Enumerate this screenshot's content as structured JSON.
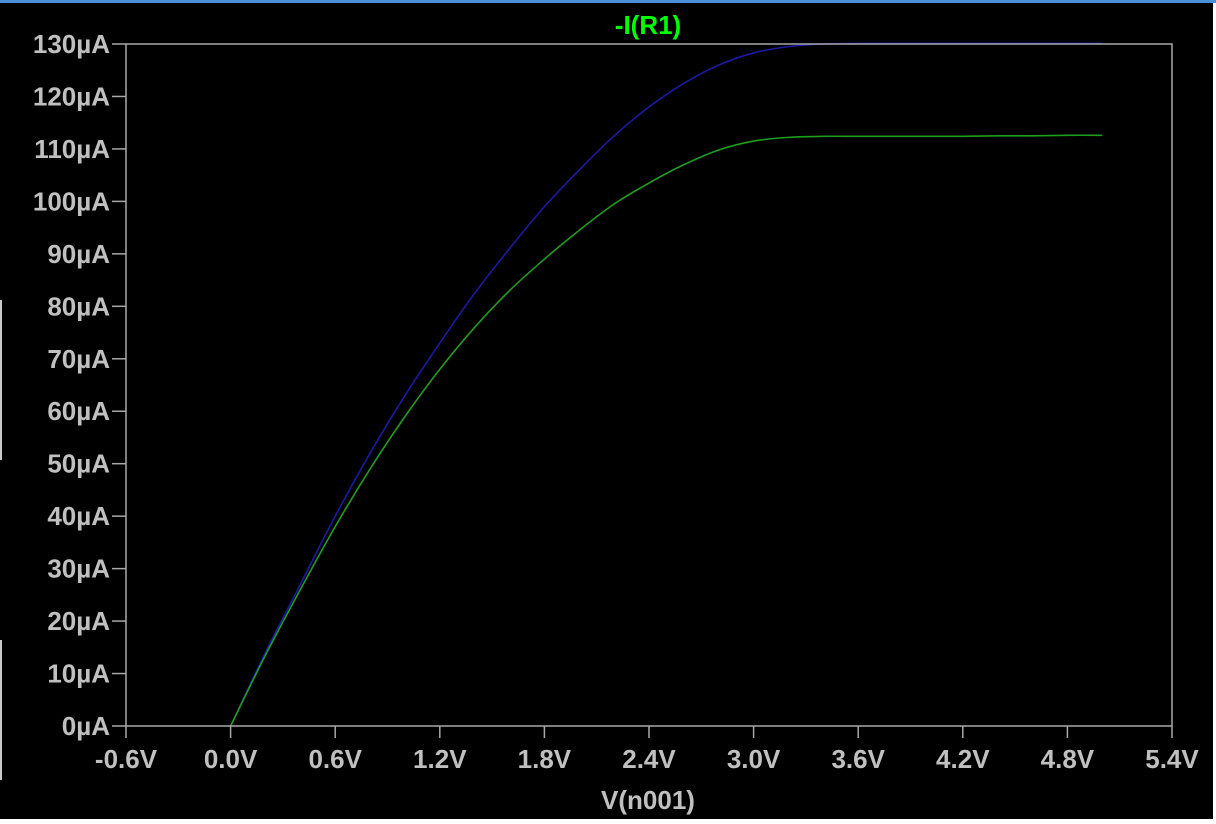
{
  "chart_data": {
    "type": "line",
    "title": "-I(R1)",
    "xlabel": "V(n001)",
    "ylabel": "",
    "xlim": [
      -0.6,
      5.4
    ],
    "ylim": [
      0,
      130
    ],
    "x_ticks": [
      -0.6,
      0.0,
      0.6,
      1.2,
      1.8,
      2.4,
      3.0,
      3.6,
      4.2,
      4.8,
      5.4
    ],
    "x_tick_labels": [
      "-0.6V",
      "0.0V",
      "0.6V",
      "1.2V",
      "1.8V",
      "2.4V",
      "3.0V",
      "3.6V",
      "4.2V",
      "4.8V",
      "5.4V"
    ],
    "y_ticks": [
      0,
      10,
      20,
      30,
      40,
      50,
      60,
      70,
      80,
      90,
      100,
      110,
      120,
      130
    ],
    "y_tick_labels": [
      "0µA",
      "10µA",
      "20µA",
      "30µA",
      "40µA",
      "50µA",
      "60µA",
      "70µA",
      "80µA",
      "90µA",
      "100µA",
      "110µA",
      "120µA",
      "130µA"
    ],
    "grid": false,
    "series": [
      {
        "color": "#1a1aa6",
        "x": [
          0.0,
          0.2,
          0.4,
          0.6,
          0.8,
          1.0,
          1.2,
          1.4,
          1.6,
          1.8,
          2.0,
          2.2,
          2.4,
          2.6,
          2.8,
          3.0,
          3.2,
          3.4,
          3.6,
          3.8,
          4.0,
          4.2,
          4.4,
          4.6,
          4.8,
          5.0
        ],
        "y": [
          0.0,
          14.0,
          27.0,
          40.0,
          52.0,
          63.0,
          73.0,
          82.5,
          91.0,
          99.0,
          106.0,
          112.5,
          118.0,
          122.5,
          126.0,
          128.3,
          129.5,
          130.0,
          130.1,
          130.1,
          130.1,
          130.1,
          130.1,
          130.1,
          130.1,
          130.1
        ]
      },
      {
        "color": "#1e9e1e",
        "x": [
          0.0,
          0.2,
          0.4,
          0.6,
          0.8,
          1.0,
          1.2,
          1.4,
          1.6,
          1.8,
          2.0,
          2.2,
          2.4,
          2.6,
          2.8,
          3.0,
          3.2,
          3.4,
          3.6,
          3.8,
          4.0,
          4.2,
          4.4,
          4.6,
          4.8,
          5.0
        ],
        "y": [
          0.0,
          13.5,
          26.0,
          38.0,
          49.0,
          59.0,
          68.0,
          76.0,
          83.0,
          89.0,
          94.5,
          99.5,
          103.5,
          107.0,
          109.8,
          111.5,
          112.2,
          112.4,
          112.4,
          112.4,
          112.4,
          112.4,
          112.5,
          112.5,
          112.6,
          112.6
        ]
      }
    ],
    "colors": {
      "background": "#000000",
      "axis": "#a8a8a8",
      "tick_label": "#c0c0c0",
      "title": "#00ff00"
    }
  }
}
